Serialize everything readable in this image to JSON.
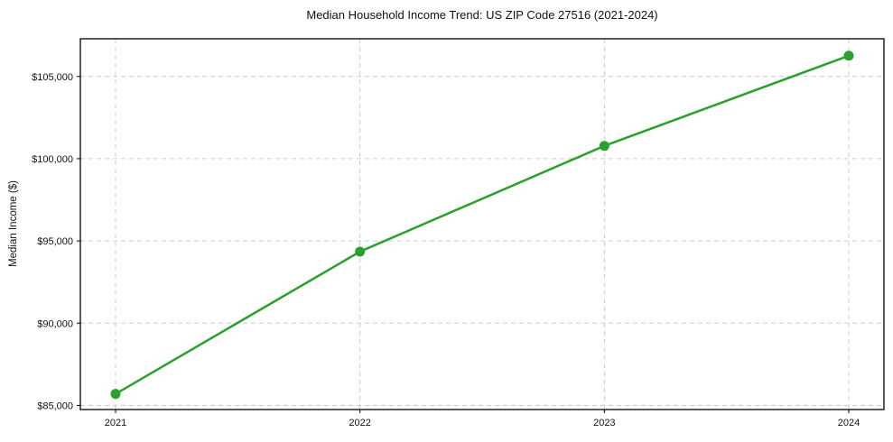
{
  "chart_data": {
    "type": "line",
    "title": "Median Household Income Trend: US ZIP Code 27516 (2021-2024)",
    "xlabel": "",
    "ylabel": "Median Income ($)",
    "categories": [
      "2021",
      "2022",
      "2023",
      "2024"
    ],
    "values": [
      85700,
      94350,
      100780,
      106260
    ],
    "y_ticks": {
      "values": [
        85000,
        90000,
        95000,
        100000,
        105000
      ],
      "labels": [
        "$85,000",
        "$90,000",
        "$95,000",
        "$100,000",
        "$105,000"
      ]
    },
    "ylim": [
      84750,
      107290
    ],
    "grid": "dashed, both axes",
    "legend": "none",
    "line_color": "#2ca02c",
    "marker": "circle"
  }
}
